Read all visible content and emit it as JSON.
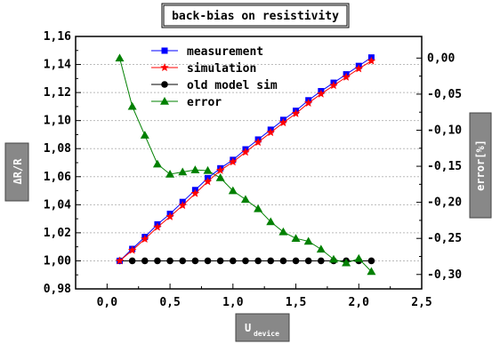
{
  "chart_data": {
    "type": "line",
    "title": "back-bias on resistivity",
    "xlabel": {
      "main": "U",
      "sub": "device"
    },
    "ylabel_left": "ΔR/R",
    "ylabel_right": "error[%]",
    "xlim": [
      -0.25,
      2.5
    ],
    "ylim_left": [
      0.98,
      1.16
    ],
    "ylim_right": [
      -0.32,
      0.03
    ],
    "x_ticks": [
      "0,0",
      "0,5",
      "1,0",
      "1,5",
      "2,0",
      "2,5"
    ],
    "x_tick_values": [
      0,
      0.5,
      1.0,
      1.5,
      2.0,
      2.5
    ],
    "y_left_ticks": [
      "0,98",
      "1,00",
      "1,02",
      "1,04",
      "1,06",
      "1,08",
      "1,10",
      "1,12",
      "1,14",
      "1,16"
    ],
    "y_left_tick_values": [
      0.98,
      1.0,
      1.02,
      1.04,
      1.06,
      1.08,
      1.1,
      1.12,
      1.14,
      1.16
    ],
    "y_right_ticks": [
      "0,00",
      "-0,05",
      "-0,10",
      "-0,15",
      "-0,20",
      "-0,25",
      "-0,30"
    ],
    "y_right_tick_values": [
      0,
      -0.05,
      -0.1,
      -0.15,
      -0.2,
      -0.25,
      -0.3
    ],
    "legend_position": "top-center",
    "grid": "horizontal dashed",
    "x": [
      0.1,
      0.2,
      0.3,
      0.4,
      0.5,
      0.6,
      0.7,
      0.8,
      0.9,
      1.0,
      1.1,
      1.2,
      1.3,
      1.4,
      1.5,
      1.6,
      1.7,
      1.8,
      1.9,
      2.0,
      2.1
    ],
    "series": [
      {
        "name": "measurement",
        "axis": "left",
        "color": "#0000ff",
        "marker": "square",
        "values": [
          1.0,
          1.0085,
          1.017,
          1.026,
          1.0335,
          1.042,
          1.0505,
          1.059,
          1.066,
          1.072,
          1.0795,
          1.0865,
          1.0935,
          1.1005,
          1.107,
          1.1145,
          1.121,
          1.127,
          1.133,
          1.139,
          1.145
        ]
      },
      {
        "name": "simulation",
        "axis": "left",
        "color": "#ff0000",
        "marker": "star",
        "values": [
          1.0,
          1.0075,
          1.0155,
          1.024,
          1.0315,
          1.0395,
          1.048,
          1.0565,
          1.0645,
          1.0705,
          1.0775,
          1.0845,
          1.0915,
          1.0985,
          1.105,
          1.1125,
          1.119,
          1.125,
          1.131,
          1.137,
          1.1425
        ]
      },
      {
        "name": "old model sim",
        "axis": "left",
        "color": "#000000",
        "marker": "circle",
        "values": [
          1.0,
          1.0,
          1.0,
          1.0,
          1.0,
          1.0,
          1.0,
          1.0,
          1.0,
          1.0,
          1.0,
          1.0,
          1.0,
          1.0,
          1.0,
          1.0,
          1.0,
          1.0,
          1.0,
          1.0,
          1.0
        ]
      },
      {
        "name": "error",
        "axis": "right",
        "color": "#008000",
        "marker": "triangle",
        "values": [
          0.0,
          -0.067,
          -0.107,
          -0.147,
          -0.161,
          -0.158,
          -0.155,
          -0.156,
          -0.166,
          -0.184,
          -0.196,
          -0.209,
          -0.227,
          -0.241,
          -0.25,
          -0.254,
          -0.265,
          -0.279,
          -0.284,
          -0.278,
          -0.296
        ]
      }
    ]
  }
}
